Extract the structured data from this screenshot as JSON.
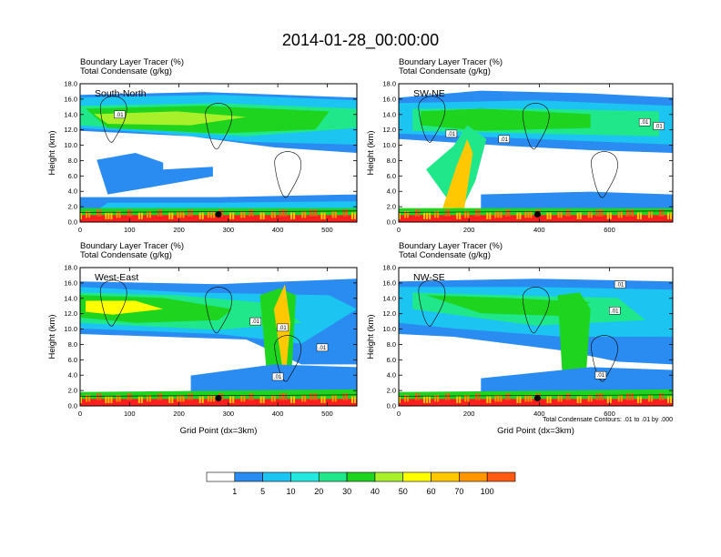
{
  "title": "2014-01-28_00:00:00",
  "panel_title_line1": "Boundary Layer Tracer   (%)",
  "panel_title_line2": "Total Condensate   (g/kg)",
  "ylabel": "Height (km)",
  "xlabel": "Grid Point (dx=3km)",
  "footnote": "Total Condensate Contours: .01 to .01 by .000",
  "contour_label": ".01",
  "colors": {
    "levels": [
      "#ffffff",
      "#2a8cf0",
      "#1cc4f2",
      "#22e8e0",
      "#20e88a",
      "#1ed41e",
      "#a8f02a",
      "#ffff00",
      "#ffc800",
      "#ff9600",
      "#ff5a14",
      "#ff1e1e"
    ],
    "background_fill": "#ffffff"
  },
  "colorbar": {
    "labels": [
      "1",
      "5",
      "10",
      "20",
      "30",
      "40",
      "50",
      "60",
      "70",
      "100"
    ]
  },
  "chart_data": [
    {
      "type": "heatmap",
      "name": "South-North",
      "ylabel": "Height (km)",
      "xlim": [
        0,
        560
      ],
      "ylim": [
        0,
        18
      ],
      "xticks": [
        0,
        100,
        200,
        300,
        400,
        500
      ],
      "yticks": [
        "0.0",
        "2.0",
        "4.0",
        "6.0",
        "8.0",
        "10.0",
        "12.0",
        "14.0",
        "16.0",
        "18.0"
      ],
      "marker": [
        280,
        1.0
      ],
      "contour_labels": [
        [
          80,
          14.0
        ]
      ]
    },
    {
      "type": "heatmap",
      "name": "SW-NE",
      "ylabel": "Height (km)",
      "xlim": [
        0,
        780
      ],
      "ylim": [
        0,
        18
      ],
      "xticks": [
        0,
        200,
        400,
        600
      ],
      "yticks": [
        "0.0",
        "2.0",
        "4.0",
        "6.0",
        "8.0",
        "10.0",
        "12.0",
        "14.0",
        "16.0",
        "18.0"
      ],
      "marker": [
        395,
        1.0
      ],
      "contour_labels": [
        [
          150,
          11.5
        ],
        [
          300,
          10.8
        ],
        [
          700,
          13.0
        ],
        [
          740,
          12.5
        ]
      ]
    },
    {
      "type": "heatmap",
      "name": "West-East",
      "ylabel": "Height (km)",
      "xlabel": "Grid Point (dx=3km)",
      "xlim": [
        0,
        560
      ],
      "ylim": [
        0,
        18
      ],
      "xticks": [
        0,
        100,
        200,
        300,
        400,
        500
      ],
      "yticks": [
        "0.0",
        "2.0",
        "4.0",
        "6.0",
        "8.0",
        "10.0",
        "12.0",
        "14.0",
        "16.0",
        "18.0"
      ],
      "marker": [
        280,
        1.0
      ],
      "contour_labels": [
        [
          355,
          11.0
        ],
        [
          410,
          10.2
        ],
        [
          490,
          7.6
        ],
        [
          400,
          3.8
        ]
      ]
    },
    {
      "type": "heatmap",
      "name": "NW-SE",
      "ylabel": "Height (km)",
      "xlabel": "Grid Point (dx=3km)",
      "xlim": [
        0,
        780
      ],
      "ylim": [
        0,
        18
      ],
      "xticks": [
        0,
        200,
        400,
        600
      ],
      "yticks": [
        "0.0",
        "2.0",
        "4.0",
        "6.0",
        "8.0",
        "10.0",
        "12.0",
        "14.0",
        "16.0",
        "18.0"
      ],
      "marker": [
        395,
        1.0
      ],
      "contour_labels": [
        [
          615,
          12.4
        ],
        [
          630,
          15.8
        ],
        [
          575,
          4.0
        ]
      ]
    }
  ]
}
